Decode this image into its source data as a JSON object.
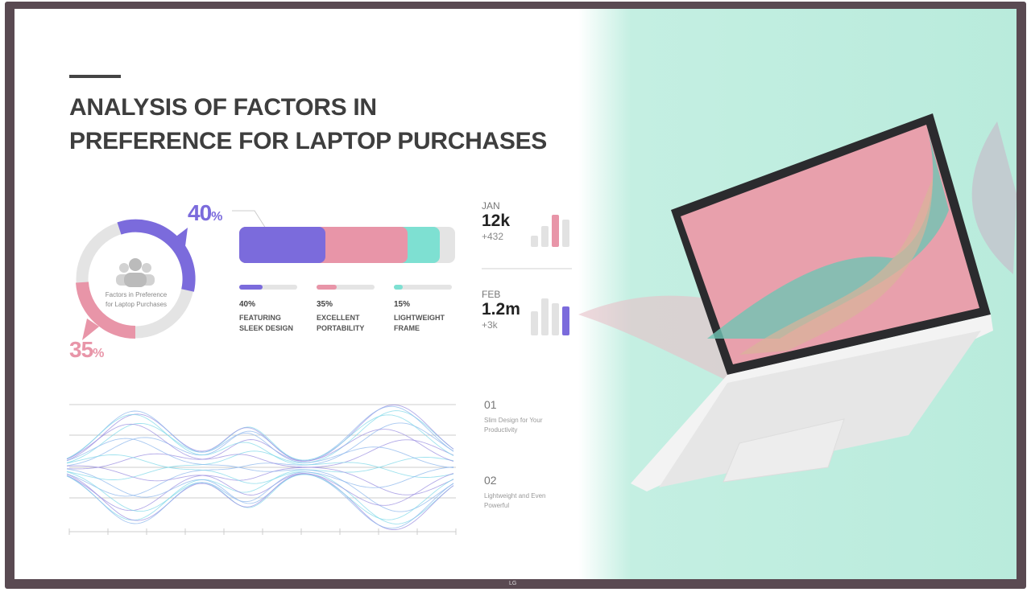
{
  "title": {
    "line1": "ANALYSIS OF FACTORS IN",
    "line2": "PREFERENCE FOR LAPTOP PURCHASES"
  },
  "ring": {
    "caption_line1": "Factors in Preference",
    "caption_line2": "for Laptop Purchases",
    "top_value": "40",
    "bottom_value": "35",
    "percent_sign": "%",
    "icon": "people-group-icon"
  },
  "stacked_bar": {
    "segments": [
      {
        "value": 40,
        "color": "#7b6bdc"
      },
      {
        "value": 35,
        "color": "#e895a8"
      },
      {
        "value": 15,
        "color": "#7ee0d2"
      }
    ]
  },
  "factors": [
    {
      "percent": "40%",
      "line1": "FEATURING",
      "line2": "SLEEK DESIGN",
      "fill": 0.4,
      "color": "#7b6bdc"
    },
    {
      "percent": "35%",
      "line1": "EXCELLENT",
      "line2": "PORTABILITY",
      "fill": 0.35,
      "color": "#e895a8"
    },
    {
      "percent": "15%",
      "line1": "LIGHTWEIGHT",
      "line2": "FRAME",
      "fill": 0.15,
      "color": "#7ee0d2"
    }
  ],
  "stats": [
    {
      "month": "JAN",
      "value": "12k",
      "change": "+432",
      "highlight": 2,
      "color": "#e895a8"
    },
    {
      "month": "FEB",
      "value": "1.2m",
      "change": "+3k",
      "highlight": 3,
      "color": "#7b6bdc"
    }
  ],
  "features": [
    {
      "number": "01",
      "line1": "Slim Design for Your",
      "line2": "Productivity"
    },
    {
      "number": "02",
      "line1": "Lightweight and Even",
      "line2": "Powerful"
    }
  ],
  "brand": "LG"
}
